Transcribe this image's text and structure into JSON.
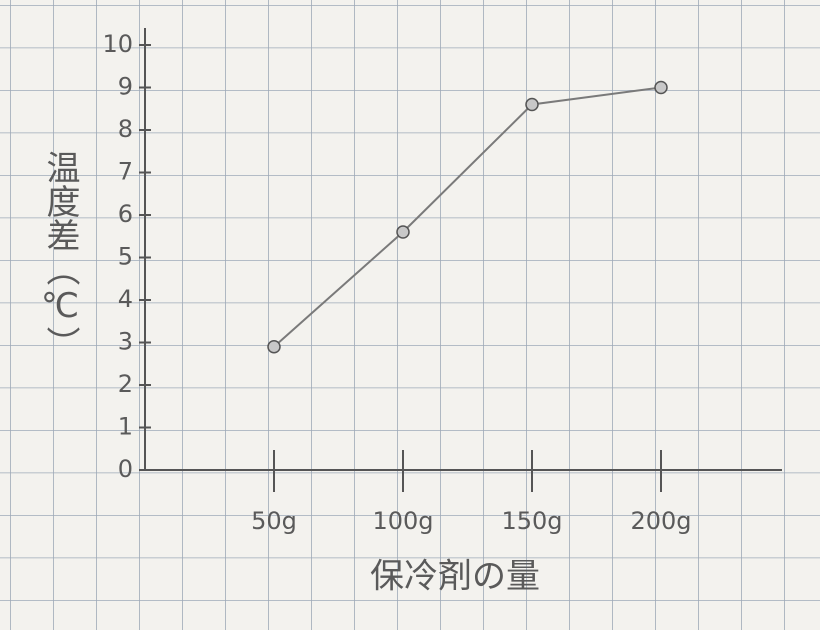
{
  "chart_data": {
    "type": "line",
    "categories": [
      "50g",
      "100g",
      "150g",
      "200g"
    ],
    "values": [
      2.9,
      5.6,
      8.6,
      9.0
    ],
    "color": "#7a7a7a",
    "ylim": [
      0,
      10
    ],
    "yticks": [
      0,
      1,
      2,
      3,
      4,
      5,
      6,
      7,
      8,
      9,
      10
    ],
    "x_label": "保冷剤の量",
    "y_label": "温度差（℃）"
  }
}
